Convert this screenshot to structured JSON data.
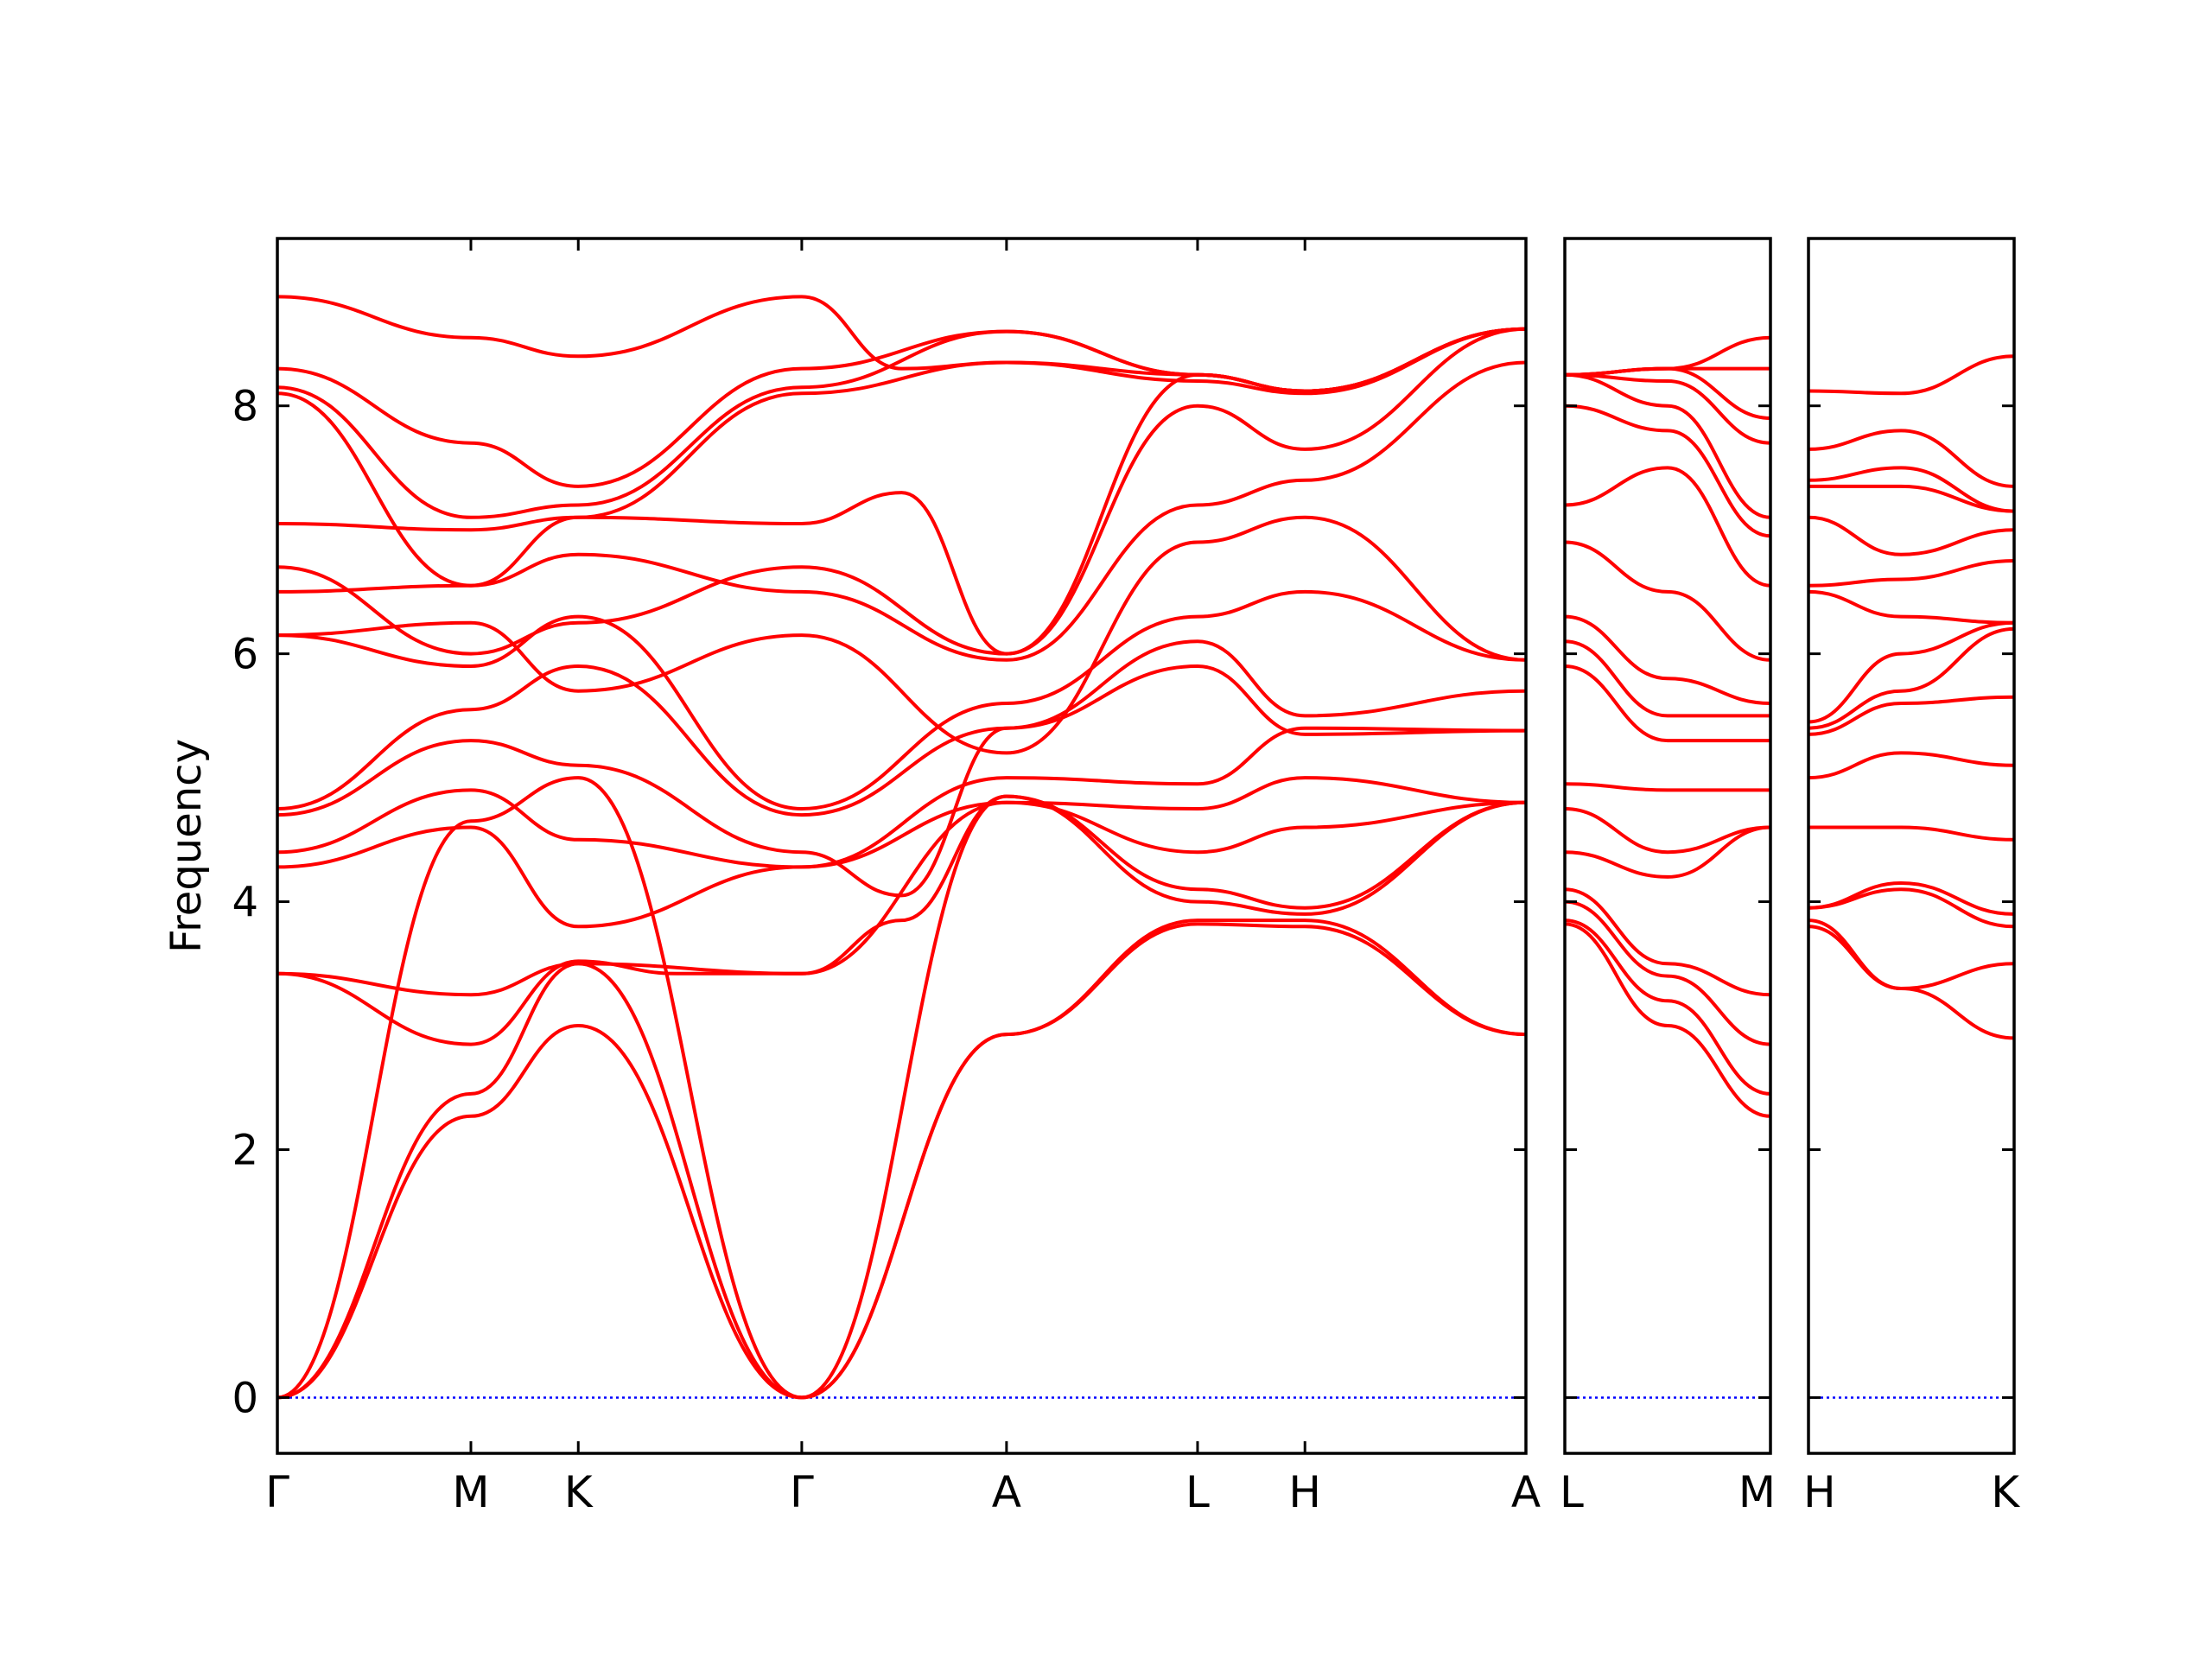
{
  "chart_data": {
    "type": "line",
    "ylabel": "Frequency",
    "ylim": [
      -0.45,
      9.35
    ],
    "yticks": [
      0,
      2,
      4,
      6,
      8
    ],
    "band_color": "#ff0000",
    "zero_line_color": "#0000ff",
    "panels": [
      {
        "labels": [
          "Γ",
          "M",
          "K",
          "Γ",
          "A",
          "L",
          "H",
          "A"
        ],
        "x": [
          0,
          0.155,
          0.241,
          0.42,
          0.584,
          0.737,
          0.823,
          1.0
        ],
        "bands": [
          [
            [
              0,
              0
            ],
            [
              0.155,
              2.27
            ],
            [
              0.241,
              3.0
            ],
            [
              0.42,
              0
            ],
            [
              0.584,
              2.93
            ],
            [
              0.737,
              3.82
            ],
            [
              0.823,
              3.8
            ],
            [
              1.0,
              2.93
            ]
          ],
          [
            [
              0,
              0
            ],
            [
              0.155,
              2.45
            ],
            [
              0.241,
              3.5
            ],
            [
              0.42,
              0
            ],
            [
              0.584,
              2.93
            ],
            [
              0.737,
              3.85
            ],
            [
              0.823,
              3.85
            ],
            [
              1.0,
              2.93
            ]
          ],
          [
            [
              0,
              0
            ],
            [
              0.155,
              4.65
            ],
            [
              0.241,
              5.0
            ],
            [
              0.42,
              0
            ],
            [
              0.584,
              4.85
            ],
            [
              0.737,
              4.0
            ],
            [
              0.823,
              3.9
            ],
            [
              1.0,
              4.8
            ]
          ],
          [
            [
              0,
              3.42
            ],
            [
              0.155,
              3.25
            ],
            [
              0.241,
              3.5
            ],
            [
              0.42,
              3.42
            ],
            [
              0.5,
              3.85
            ],
            [
              0.584,
              4.85
            ],
            [
              0.737,
              4.1
            ],
            [
              0.823,
              3.95
            ],
            [
              1.0,
              4.8
            ]
          ],
          [
            [
              0,
              3.42
            ],
            [
              0.155,
              2.85
            ],
            [
              0.241,
              3.52
            ],
            [
              0.32,
              3.42
            ],
            [
              0.42,
              3.42
            ],
            [
              0.584,
              4.8
            ],
            [
              0.737,
              4.4
            ],
            [
              0.823,
              4.6
            ],
            [
              1.0,
              4.8
            ]
          ],
          [
            [
              0,
              4.28
            ],
            [
              0.155,
              4.6
            ],
            [
              0.241,
              3.8
            ],
            [
              0.42,
              4.28
            ],
            [
              0.584,
              4.8
            ],
            [
              0.737,
              4.75
            ],
            [
              0.823,
              5.0
            ],
            [
              1.0,
              4.8
            ]
          ],
          [
            [
              0,
              4.4
            ],
            [
              0.155,
              4.9
            ],
            [
              0.241,
              4.5
            ],
            [
              0.42,
              4.28
            ],
            [
              0.584,
              5.0
            ],
            [
              0.737,
              4.95
            ],
            [
              0.823,
              5.4
            ],
            [
              1.0,
              5.38
            ]
          ],
          [
            [
              0,
              4.7
            ],
            [
              0.155,
              5.3
            ],
            [
              0.241,
              5.1
            ],
            [
              0.42,
              4.4
            ],
            [
              0.5,
              4.05
            ],
            [
              0.584,
              5.4
            ],
            [
              0.737,
              5.9
            ],
            [
              0.823,
              5.35
            ],
            [
              1.0,
              5.38
            ]
          ],
          [
            [
              0,
              4.75
            ],
            [
              0.155,
              5.55
            ],
            [
              0.241,
              5.9
            ],
            [
              0.42,
              4.7
            ],
            [
              0.584,
              5.4
            ],
            [
              0.737,
              6.1
            ],
            [
              0.823,
              5.5
            ],
            [
              1.0,
              5.7
            ]
          ],
          [
            [
              0,
              6.15
            ],
            [
              0.155,
              5.9
            ],
            [
              0.241,
              6.3
            ],
            [
              0.42,
              4.75
            ],
            [
              0.584,
              5.6
            ],
            [
              0.737,
              6.3
            ],
            [
              0.823,
              6.5
            ],
            [
              1.0,
              5.95
            ]
          ],
          [
            [
              0,
              6.15
            ],
            [
              0.155,
              6.25
            ],
            [
              0.241,
              5.7
            ],
            [
              0.42,
              6.15
            ],
            [
              0.584,
              5.2
            ],
            [
              0.737,
              6.9
            ],
            [
              0.823,
              7.1
            ],
            [
              1.0,
              5.95
            ]
          ],
          [
            [
              0,
              6.5
            ],
            [
              0.155,
              6.55
            ],
            [
              0.241,
              6.8
            ],
            [
              0.42,
              6.5
            ],
            [
              0.584,
              5.95
            ],
            [
              0.737,
              7.2
            ],
            [
              0.823,
              7.4
            ],
            [
              1.0,
              8.35
            ]
          ],
          [
            [
              0,
              6.7
            ],
            [
              0.155,
              6.0
            ],
            [
              0.241,
              6.25
            ],
            [
              0.42,
              6.7
            ],
            [
              0.584,
              6.0
            ],
            [
              0.737,
              8.0
            ],
            [
              0.823,
              7.65
            ],
            [
              1.0,
              8.62
            ]
          ],
          [
            [
              0,
              7.05
            ],
            [
              0.155,
              7.0
            ],
            [
              0.241,
              7.1
            ],
            [
              0.42,
              7.05
            ],
            [
              0.5,
              7.3
            ],
            [
              0.584,
              6.0
            ],
            [
              0.737,
              8.25
            ],
            [
              0.823,
              8.12
            ],
            [
              1.0,
              8.62
            ]
          ],
          [
            [
              0,
              8.1
            ],
            [
              0.155,
              6.55
            ],
            [
              0.241,
              7.1
            ],
            [
              0.42,
              8.1
            ],
            [
              0.584,
              8.35
            ],
            [
              0.737,
              8.2
            ],
            [
              0.823,
              8.1
            ],
            [
              1.0,
              8.62
            ]
          ],
          [
            [
              0,
              8.15
            ],
            [
              0.155,
              7.1
            ],
            [
              0.241,
              7.2
            ],
            [
              0.42,
              8.15
            ],
            [
              0.584,
              8.6
            ],
            [
              0.737,
              8.25
            ],
            [
              0.823,
              8.12
            ],
            [
              1.0,
              8.62
            ]
          ],
          [
            [
              0,
              8.3
            ],
            [
              0.155,
              7.7
            ],
            [
              0.241,
              7.35
            ],
            [
              0.42,
              8.3
            ],
            [
              0.584,
              8.6
            ],
            [
              0.737,
              8.25
            ],
            [
              0.823,
              8.12
            ],
            [
              1.0,
              8.62
            ]
          ],
          [
            [
              0,
              8.88
            ],
            [
              0.155,
              8.55
            ],
            [
              0.241,
              8.4
            ],
            [
              0.42,
              8.88
            ],
            [
              0.5,
              8.3
            ],
            [
              0.584,
              8.35
            ],
            [
              0.737,
              8.25
            ],
            [
              0.823,
              8.12
            ],
            [
              1.0,
              8.62
            ]
          ]
        ]
      },
      {
        "labels": [
          "L",
          "M"
        ],
        "x": [
          0,
          1.0
        ],
        "bands": [
          [
            [
              0,
              3.82
            ],
            [
              0.5,
              3.0
            ],
            [
              1.0,
              2.27
            ]
          ],
          [
            [
              0,
              3.85
            ],
            [
              0.5,
              3.2
            ],
            [
              1.0,
              2.45
            ]
          ],
          [
            [
              0,
              4.0
            ],
            [
              0.5,
              3.4
            ],
            [
              1.0,
              2.85
            ]
          ],
          [
            [
              0,
              4.1
            ],
            [
              0.5,
              3.5
            ],
            [
              1.0,
              3.25
            ]
          ],
          [
            [
              0,
              4.4
            ],
            [
              0.5,
              4.2
            ],
            [
              1.0,
              4.6
            ]
          ],
          [
            [
              0,
              4.75
            ],
            [
              0.5,
              4.4
            ],
            [
              1.0,
              4.6
            ]
          ],
          [
            [
              0,
              4.95
            ],
            [
              0.5,
              4.9
            ],
            [
              1.0,
              4.9
            ]
          ],
          [
            [
              0,
              5.9
            ],
            [
              0.5,
              5.3
            ],
            [
              1.0,
              5.3
            ]
          ],
          [
            [
              0,
              6.1
            ],
            [
              0.5,
              5.5
            ],
            [
              1.0,
              5.5
            ]
          ],
          [
            [
              0,
              6.3
            ],
            [
              0.5,
              5.8
            ],
            [
              1.0,
              5.6
            ]
          ],
          [
            [
              0,
              6.9
            ],
            [
              0.5,
              6.5
            ],
            [
              1.0,
              5.95
            ]
          ],
          [
            [
              0,
              7.2
            ],
            [
              0.5,
              7.5
            ],
            [
              1.0,
              6.55
            ]
          ],
          [
            [
              0,
              8.0
            ],
            [
              0.5,
              7.8
            ],
            [
              1.0,
              6.95
            ]
          ],
          [
            [
              0,
              8.25
            ],
            [
              0.5,
              8.0
            ],
            [
              1.0,
              7.1
            ]
          ],
          [
            [
              0,
              8.25
            ],
            [
              0.5,
              8.2
            ],
            [
              1.0,
              7.7
            ]
          ],
          [
            [
              0,
              8.25
            ],
            [
              0.5,
              8.3
            ],
            [
              1.0,
              7.9
            ]
          ],
          [
            [
              0,
              8.25
            ],
            [
              0.5,
              8.3
            ],
            [
              1.0,
              8.3
            ]
          ],
          [
            [
              0,
              8.25
            ],
            [
              0.5,
              8.3
            ],
            [
              1.0,
              8.55
            ]
          ]
        ]
      },
      {
        "labels": [
          "H",
          "K"
        ],
        "x": [
          0,
          1.0
        ],
        "bands": [
          [
            [
              0,
              3.8
            ],
            [
              0.45,
              3.3
            ],
            [
              1.0,
              2.9
            ]
          ],
          [
            [
              0,
              3.85
            ],
            [
              0.45,
              3.3
            ],
            [
              1.0,
              3.5
            ]
          ],
          [
            [
              0,
              3.95
            ],
            [
              0.45,
              4.1
            ],
            [
              1.0,
              3.8
            ]
          ],
          [
            [
              0,
              3.95
            ],
            [
              0.45,
              4.15
            ],
            [
              1.0,
              3.9
            ]
          ],
          [
            [
              0,
              4.6
            ],
            [
              0.45,
              4.6
            ],
            [
              1.0,
              4.5
            ]
          ],
          [
            [
              0,
              5.0
            ],
            [
              0.45,
              5.2
            ],
            [
              1.0,
              5.1
            ]
          ],
          [
            [
              0,
              5.35
            ],
            [
              0.45,
              5.6
            ],
            [
              1.0,
              5.65
            ]
          ],
          [
            [
              0,
              5.4
            ],
            [
              0.45,
              5.7
            ],
            [
              1.0,
              6.2
            ]
          ],
          [
            [
              0,
              5.45
            ],
            [
              0.45,
              6.0
            ],
            [
              1.0,
              6.25
            ]
          ],
          [
            [
              0,
              6.5
            ],
            [
              0.45,
              6.3
            ],
            [
              1.0,
              6.25
            ]
          ],
          [
            [
              0,
              6.55
            ],
            [
              0.45,
              6.6
            ],
            [
              1.0,
              6.75
            ]
          ],
          [
            [
              0,
              7.1
            ],
            [
              0.45,
              6.8
            ],
            [
              1.0,
              7.0
            ]
          ],
          [
            [
              0,
              7.35
            ],
            [
              0.45,
              7.35
            ],
            [
              1.0,
              7.15
            ]
          ],
          [
            [
              0,
              7.4
            ],
            [
              0.45,
              7.5
            ],
            [
              1.0,
              7.15
            ]
          ],
          [
            [
              0,
              7.65
            ],
            [
              0.45,
              7.8
            ],
            [
              1.0,
              7.35
            ]
          ],
          [
            [
              0,
              8.12
            ],
            [
              0.45,
              8.1
            ],
            [
              1.0,
              8.4
            ]
          ]
        ]
      }
    ]
  }
}
